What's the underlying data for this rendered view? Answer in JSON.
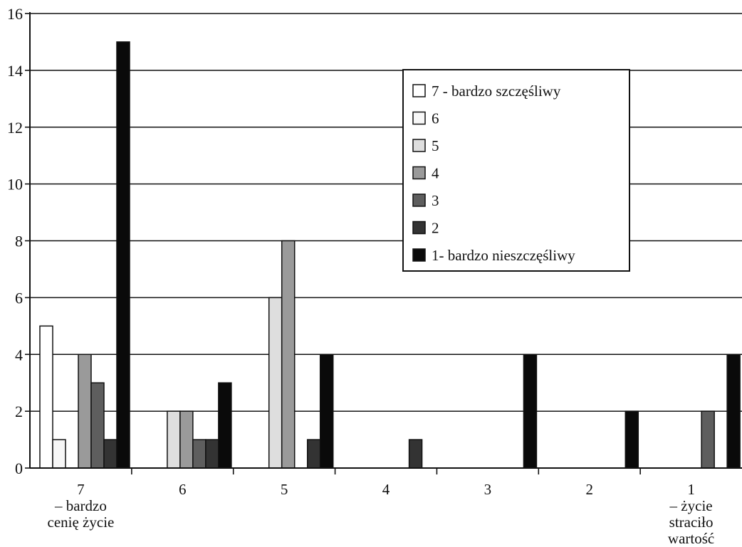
{
  "chart_data": {
    "type": "bar",
    "ylim": [
      0,
      16
    ],
    "y_ticks": [
      "0",
      "2",
      "4",
      "6",
      "8",
      "10",
      "12",
      "14",
      "16"
    ],
    "grid": true,
    "legend_position": "top-right",
    "categories": [
      [
        "7",
        "– bardzo",
        "cenię życie"
      ],
      [
        "6"
      ],
      [
        "5"
      ],
      [
        "4"
      ],
      [
        "3"
      ],
      [
        "2"
      ],
      [
        "1",
        "– życie",
        "straciło",
        "wartość"
      ]
    ],
    "series": [
      {
        "name": "7 - bardzo szczęśliwy",
        "color": "#ffffff",
        "values": [
          5,
          0,
          0,
          0,
          0,
          0,
          0
        ]
      },
      {
        "name": "6",
        "color": "#f7f7f7",
        "values": [
          1,
          0,
          0,
          0,
          0,
          0,
          0
        ]
      },
      {
        "name": "5",
        "color": "#dedede",
        "values": [
          0,
          2,
          6,
          0,
          0,
          0,
          0
        ]
      },
      {
        "name": "4",
        "color": "#9a9a9a",
        "values": [
          4,
          2,
          8,
          0,
          0,
          0,
          0
        ]
      },
      {
        "name": "3",
        "color": "#5e5e5e",
        "values": [
          3,
          1,
          0,
          0,
          0,
          0,
          2
        ]
      },
      {
        "name": "2",
        "color": "#333333",
        "values": [
          1,
          1,
          1,
          1,
          0,
          0,
          0
        ]
      },
      {
        "name": "1- bardzo nieszczęśliwy",
        "color": "#0a0a0a",
        "values": [
          15,
          3,
          4,
          0,
          4,
          2,
          4
        ]
      }
    ]
  }
}
